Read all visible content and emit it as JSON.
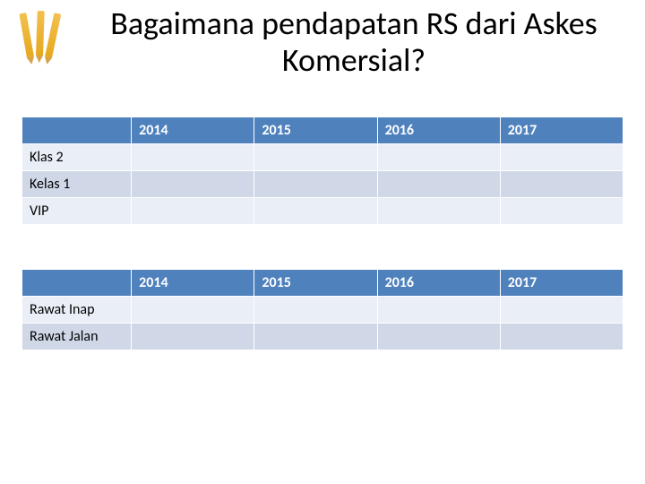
{
  "title": "Bagaimana pendapatan RS dari Askes Komersial?",
  "colors": {
    "header_bg": "#4f81bd",
    "header_text": "#ffffff",
    "row_odd": "#e9eef7",
    "row_even": "#d0d8e8",
    "title_text": "#000000"
  },
  "fonts": {
    "title_size_pt": 28,
    "cell_size_pt": 14,
    "family": "Calibri"
  },
  "table1": {
    "columns": [
      "2014",
      "2015",
      "2016",
      "2017"
    ],
    "rows": [
      {
        "label": "Klas 2",
        "cells": [
          "",
          "",
          "",
          ""
        ]
      },
      {
        "label": "Kelas 1",
        "cells": [
          "",
          "",
          "",
          ""
        ]
      },
      {
        "label": "VIP",
        "cells": [
          "",
          "",
          "",
          ""
        ]
      }
    ]
  },
  "table2": {
    "columns": [
      "2014",
      "2015",
      "2016",
      "2017"
    ],
    "rows": [
      {
        "label": "Rawat Inap",
        "cells": [
          "",
          "",
          "",
          ""
        ]
      },
      {
        "label": "Rawat Jalan",
        "cells": [
          "",
          "",
          "",
          ""
        ]
      }
    ]
  }
}
